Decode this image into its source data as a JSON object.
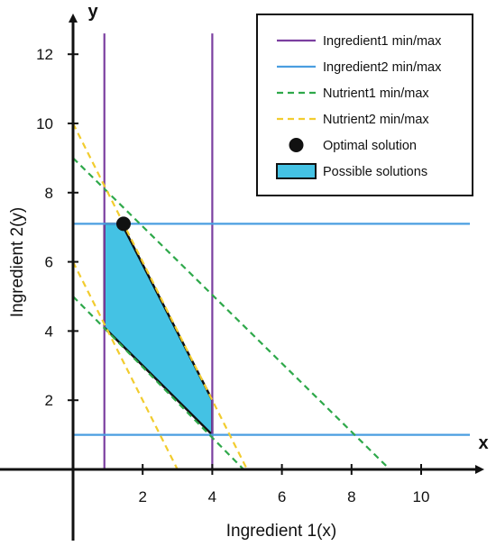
{
  "chart_data": {
    "type": "line",
    "xlabel": "Ingredient 1(x)",
    "ylabel": "Ingredient 2(y)",
    "x_axis_letter": "x",
    "y_axis_letter": "y",
    "xlim": [
      -1,
      11.5
    ],
    "ylim": [
      -2,
      12.8
    ],
    "x_ticks": [
      2,
      4,
      6,
      8,
      10
    ],
    "y_ticks": [
      2,
      4,
      6,
      8,
      10,
      12
    ],
    "grid": false,
    "legend_position": "top-right",
    "series": [
      {
        "name": "Ingredient1 min/max",
        "color": "#7b3fa0",
        "style": "solid",
        "lines": [
          {
            "x": [
              0.9,
              0.9
            ],
            "y": [
              0,
              12.6
            ]
          },
          {
            "x": [
              4,
              4
            ],
            "y": [
              0,
              12.6
            ]
          }
        ]
      },
      {
        "name": "Ingredient2 min/max",
        "color": "#4a9ee0",
        "style": "solid",
        "lines": [
          {
            "x": [
              0,
              11.4
            ],
            "y": [
              1,
              1
            ]
          },
          {
            "x": [
              0,
              11.4
            ],
            "y": [
              7.1,
              7.1
            ]
          }
        ]
      },
      {
        "name": "Nutrient1 min/max",
        "color": "#2ea84a",
        "style": "dashed",
        "lines": [
          {
            "x": [
              0,
              4.9
            ],
            "y": [
              5,
              0
            ]
          },
          {
            "x": [
              0,
              9.1
            ],
            "y": [
              9,
              0
            ]
          }
        ]
      },
      {
        "name": "Nutrient2 min/max",
        "color": "#f2cc2e",
        "style": "dashed",
        "lines": [
          {
            "x": [
              0,
              3
            ],
            "y": [
              6,
              0
            ]
          },
          {
            "x": [
              0,
              5
            ],
            "y": [
              10,
              0
            ]
          }
        ]
      },
      {
        "name": "Optimal solution",
        "color": "#111111",
        "style": "marker",
        "points": [
          {
            "x": 1.45,
            "y": 7.1
          }
        ]
      },
      {
        "name": "Possible solutions",
        "color": "#44c2e4",
        "style": "fill",
        "polygon": [
          [
            0.9,
            7.1
          ],
          [
            1.4,
            7.1
          ],
          [
            4,
            2
          ],
          [
            4,
            1
          ],
          [
            0.9,
            4.1
          ]
        ]
      }
    ]
  }
}
